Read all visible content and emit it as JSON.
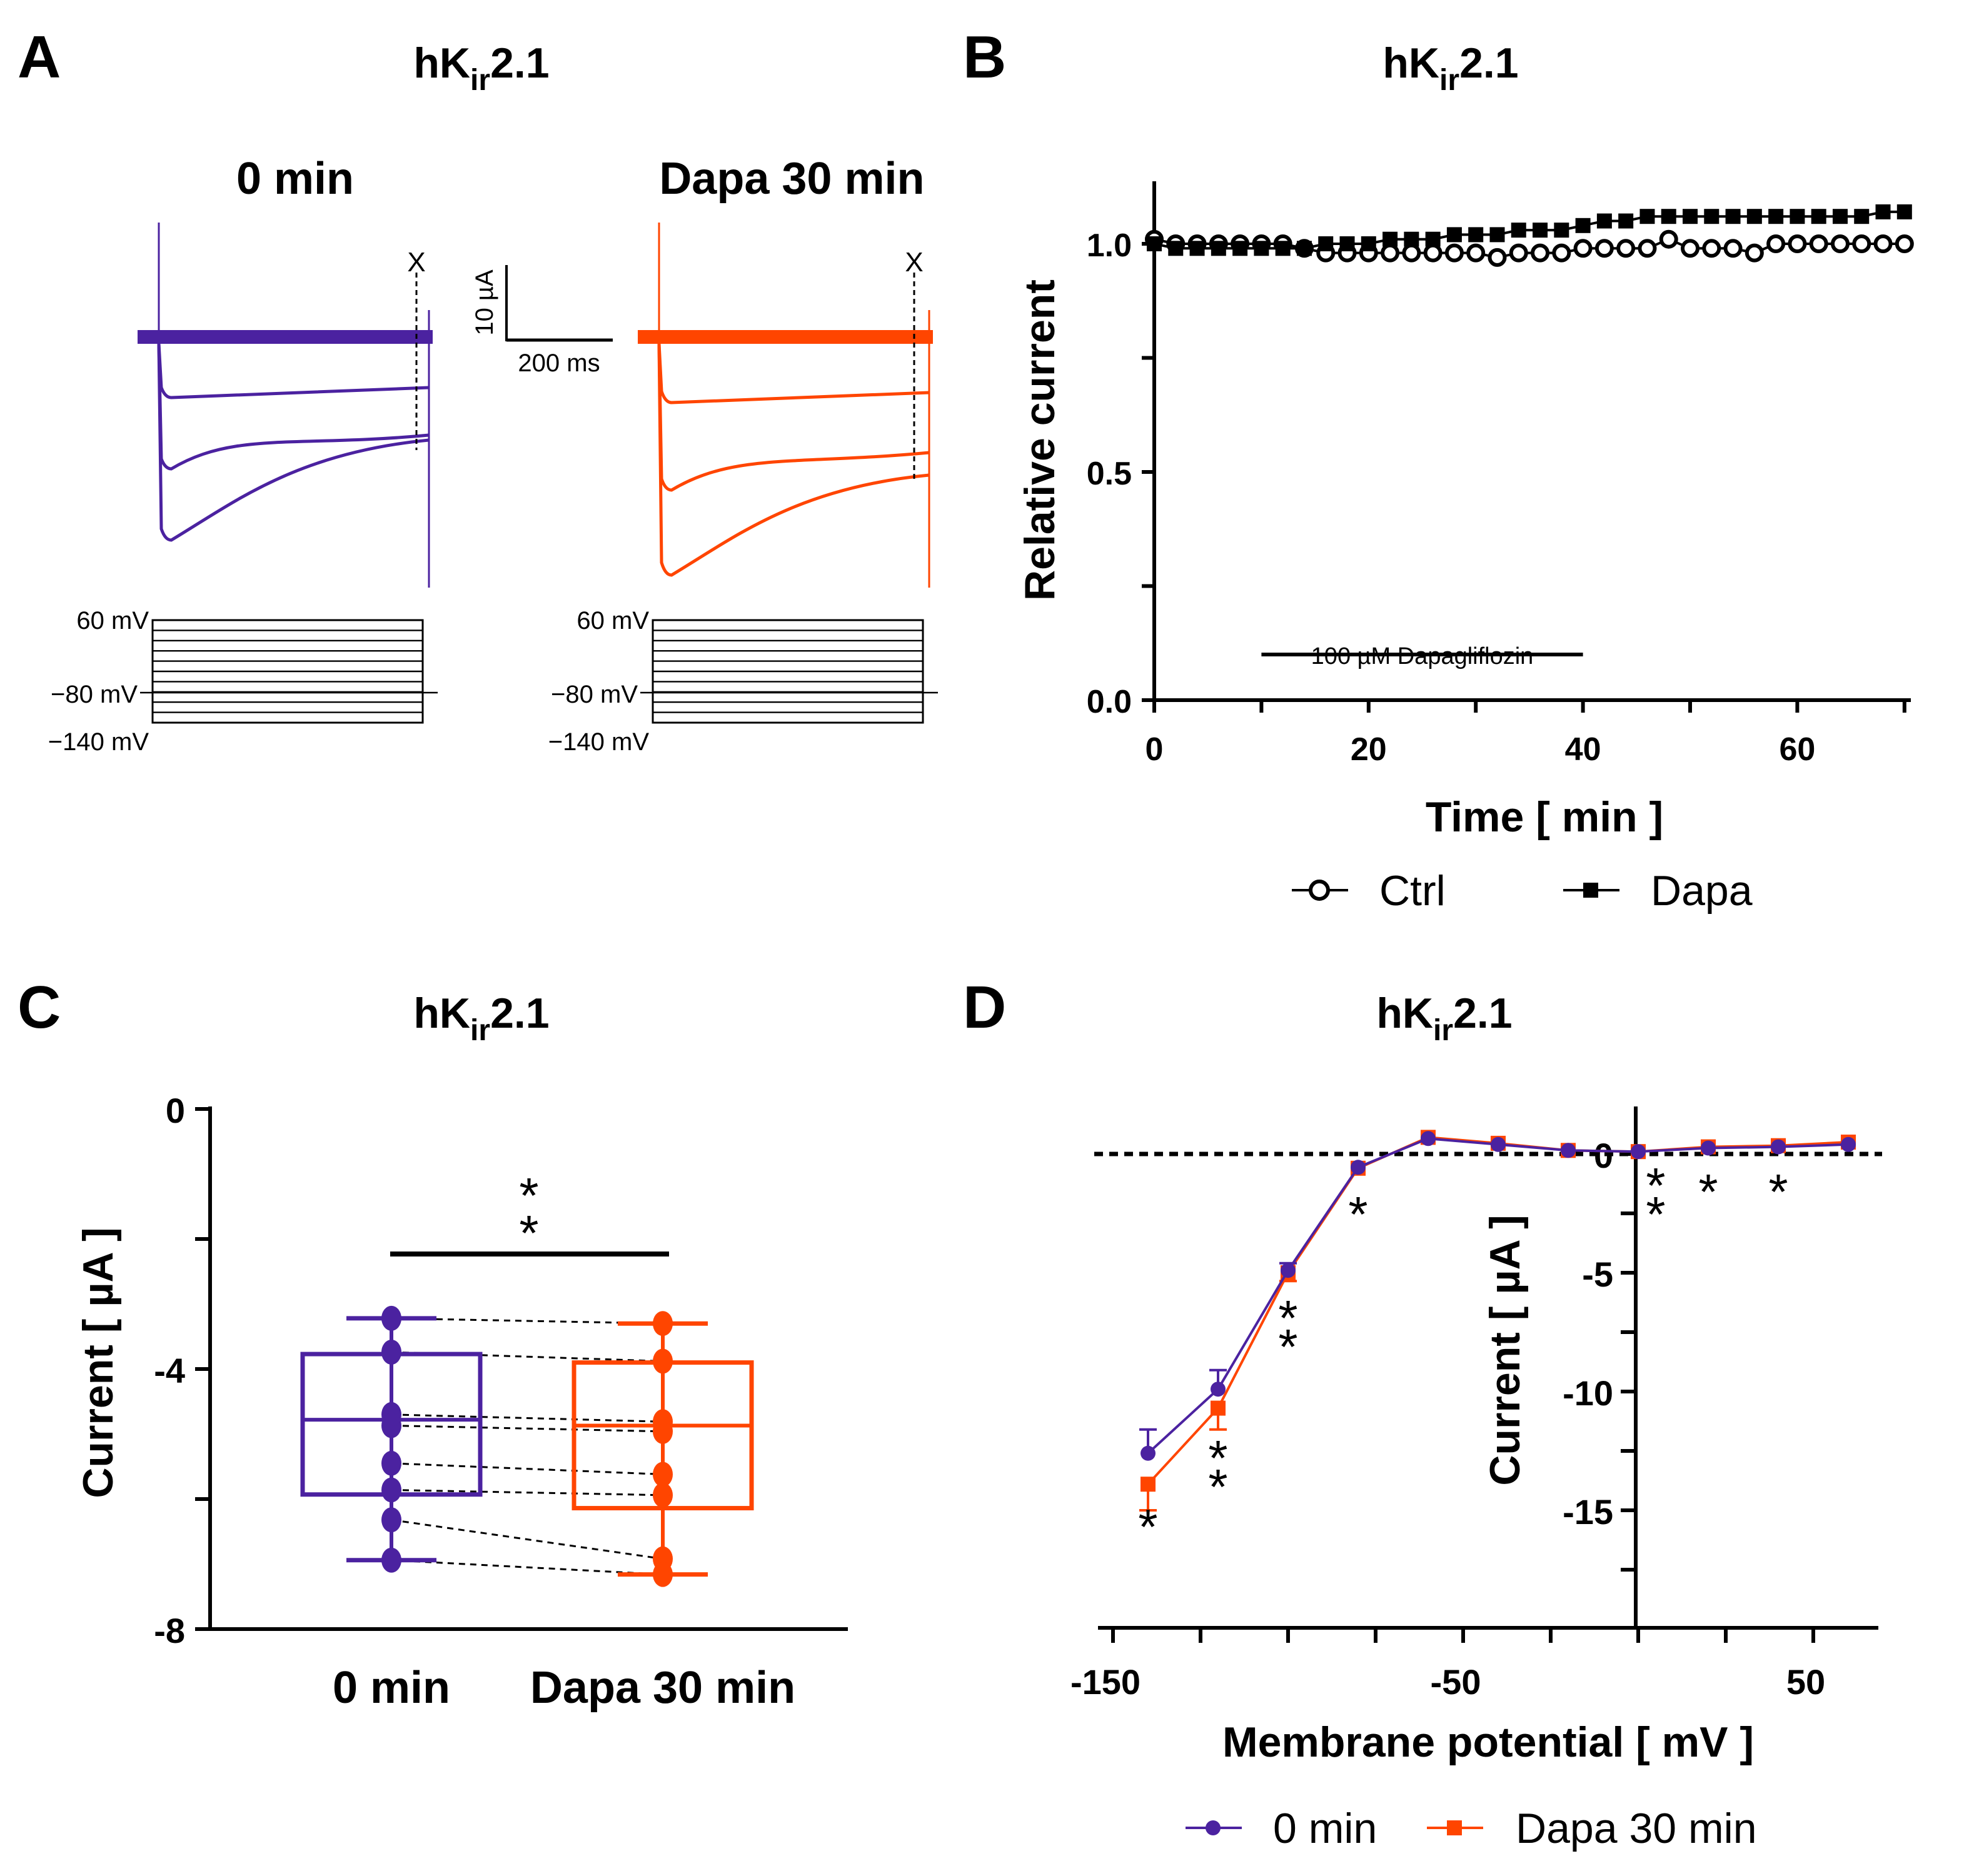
{
  "colors": {
    "t0": "#4B22A0",
    "dapa": "#FF4500",
    "black": "#000000"
  },
  "chart_data": [
    {
      "panel": "A",
      "type": "line",
      "title": "hKir2.1",
      "title_main": "hK",
      "title_sub": "ir",
      "title_tail": "2.1",
      "subpanels": [
        {
          "label": "0 min",
          "color": "#4B22A0",
          "marker": "X"
        },
        {
          "label": "Dapa 30 min",
          "color": "#FF4500",
          "marker": "X"
        }
      ],
      "scale_bar": {
        "y_label": "10 µA",
        "x_label": "200 ms"
      },
      "protocol_labels": [
        "60 mV",
        "−80 mV",
        "−140 mV"
      ]
    },
    {
      "panel": "B",
      "type": "scatter",
      "title_main": "hK",
      "title_sub": "ir",
      "title_tail": "2.1",
      "xlabel": "Time [ min ]",
      "ylabel": "Relative current",
      "xlim": [
        0,
        70
      ],
      "ylim": [
        0,
        1.15
      ],
      "xticks": [
        0,
        20,
        40,
        60
      ],
      "yticks": [
        "0.0",
        "0.5",
        "1.0"
      ],
      "x": [
        0,
        2,
        4,
        6,
        8,
        10,
        12,
        14,
        16,
        18,
        20,
        22,
        24,
        26,
        28,
        30,
        32,
        34,
        36,
        38,
        40,
        42,
        44,
        46,
        48,
        50,
        52,
        54,
        56,
        58,
        60,
        62,
        64,
        66,
        68,
        70
      ],
      "series": [
        {
          "name": "Ctrl",
          "marker": "open-circle",
          "values": [
            1.01,
            1.0,
            1.0,
            1.0,
            1.0,
            1.0,
            1.0,
            0.99,
            0.98,
            0.98,
            0.98,
            0.98,
            0.98,
            0.98,
            0.98,
            0.98,
            0.97,
            0.98,
            0.98,
            0.98,
            0.99,
            0.99,
            0.99,
            0.99,
            1.01,
            0.99,
            0.99,
            0.99,
            0.98,
            1.0,
            1.0,
            1.0,
            1.0,
            1.0,
            1.0,
            1.0
          ]
        },
        {
          "name": "Dapa",
          "marker": "filled-square",
          "values": [
            1.0,
            0.99,
            0.99,
            0.99,
            0.99,
            0.99,
            0.99,
            0.99,
            1.0,
            1.0,
            1.0,
            1.01,
            1.01,
            1.01,
            1.02,
            1.02,
            1.02,
            1.03,
            1.03,
            1.03,
            1.04,
            1.05,
            1.05,
            1.06,
            1.06,
            1.06,
            1.06,
            1.06,
            1.06,
            1.06,
            1.06,
            1.06,
            1.06,
            1.06,
            1.07,
            1.07
          ]
        }
      ],
      "annotation": {
        "text": "100 µM Dapagliflozin",
        "x_range": [
          10,
          40
        ],
        "y": 0.1
      },
      "legend": "bottom"
    },
    {
      "panel": "C",
      "type": "box",
      "title_main": "hK",
      "title_sub": "ir",
      "title_tail": "2.1",
      "ylabel": "Current [ µA ]",
      "ylim": [
        -8,
        0
      ],
      "yticks": [
        "0",
        "-4",
        "-8"
      ],
      "categories": [
        "0 min",
        "Dapa 30 min"
      ],
      "paired_values": [
        [
          -3.22,
          -3.3
        ],
        [
          -3.74,
          -3.88
        ],
        [
          -4.7,
          -4.81
        ],
        [
          -4.87,
          -4.96
        ],
        [
          -5.45,
          -5.62
        ],
        [
          -5.86,
          -5.94
        ],
        [
          -6.32,
          -6.92
        ],
        [
          -6.94,
          -7.16
        ]
      ],
      "boxes": [
        {
          "q1": -5.93,
          "median": -4.78,
          "q3": -3.77,
          "min": -6.94,
          "max": -3.22
        },
        {
          "q1": -6.14,
          "median": -4.87,
          "q3": -3.9,
          "min": -7.16,
          "max": -3.3
        }
      ],
      "significance": "**"
    },
    {
      "panel": "D",
      "type": "line",
      "title_main": "hK",
      "title_sub": "ir",
      "title_tail": "2.1",
      "xlabel": "Membrane potential [ mV ]",
      "ylabel": "Current [ µA ]",
      "xlim": [
        -155,
        70
      ],
      "ylim": [
        -20,
        2
      ],
      "xticks": [
        "-150",
        "-50",
        "50"
      ],
      "yticks": [
        "0",
        "-5",
        "-10",
        "-15"
      ],
      "x": [
        -140,
        -120,
        -100,
        -80,
        -60,
        -40,
        -20,
        0,
        20,
        40,
        60
      ],
      "series": [
        {
          "name": "0 min",
          "marker": "circle",
          "values": [
            -12.6,
            -9.9,
            -4.9,
            -0.56,
            0.65,
            0.4,
            0.15,
            0.1,
            0.25,
            0.3,
            0.4
          ],
          "error": [
            1.0,
            0.8,
            0.3,
            0.1,
            0.1,
            0.1,
            0.05,
            0.05,
            0.05,
            0.05,
            0.05
          ]
        },
        {
          "name": "Dapa 30 min",
          "marker": "square",
          "values": [
            -13.9,
            -10.7,
            -5.0,
            -0.6,
            0.7,
            0.45,
            0.15,
            0.1,
            0.3,
            0.35,
            0.5
          ],
          "error": [
            1.1,
            0.9,
            0.35,
            0.1,
            0.1,
            0.1,
            0.05,
            0.05,
            0.05,
            0.05,
            0.05
          ]
        }
      ],
      "significance": [
        {
          "x": -140,
          "text": "*"
        },
        {
          "x": -120,
          "text": "**"
        },
        {
          "x": -100,
          "text": "**"
        },
        {
          "x": -80,
          "text": "*"
        },
        {
          "x": 0,
          "text": "**"
        },
        {
          "x": 20,
          "text": "*"
        },
        {
          "x": 40,
          "text": "*"
        }
      ],
      "legend": "bottom"
    }
  ]
}
